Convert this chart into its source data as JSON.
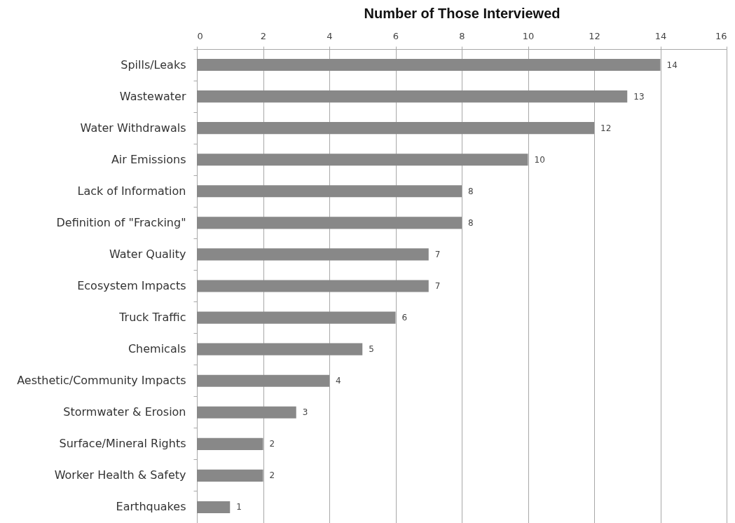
{
  "chart_data": {
    "type": "bar",
    "orientation": "horizontal",
    "xlabel": "Number of Those Interviewed",
    "categories": [
      "Spills/Leaks",
      "Wastewater",
      "Water Withdrawals",
      "Air Emissions",
      "Lack of Information",
      "Definition of \"Fracking\"",
      "Water Quality",
      "Ecosystem Impacts",
      "Truck Traffic",
      "Chemicals",
      "Aesthetic/Community Impacts",
      "Stormwater & Erosion",
      "Surface/Mineral Rights",
      "Worker Health & Safety",
      "Earthquakes"
    ],
    "values": [
      14,
      13,
      12,
      10,
      8,
      8,
      7,
      7,
      6,
      5,
      4,
      3,
      2,
      2,
      1
    ],
    "color": "#888888",
    "xlim": [
      0,
      16
    ],
    "xticks": [
      0,
      2,
      4,
      6,
      8,
      10,
      12,
      14,
      16
    ],
    "grid": true,
    "data_labels": true
  }
}
